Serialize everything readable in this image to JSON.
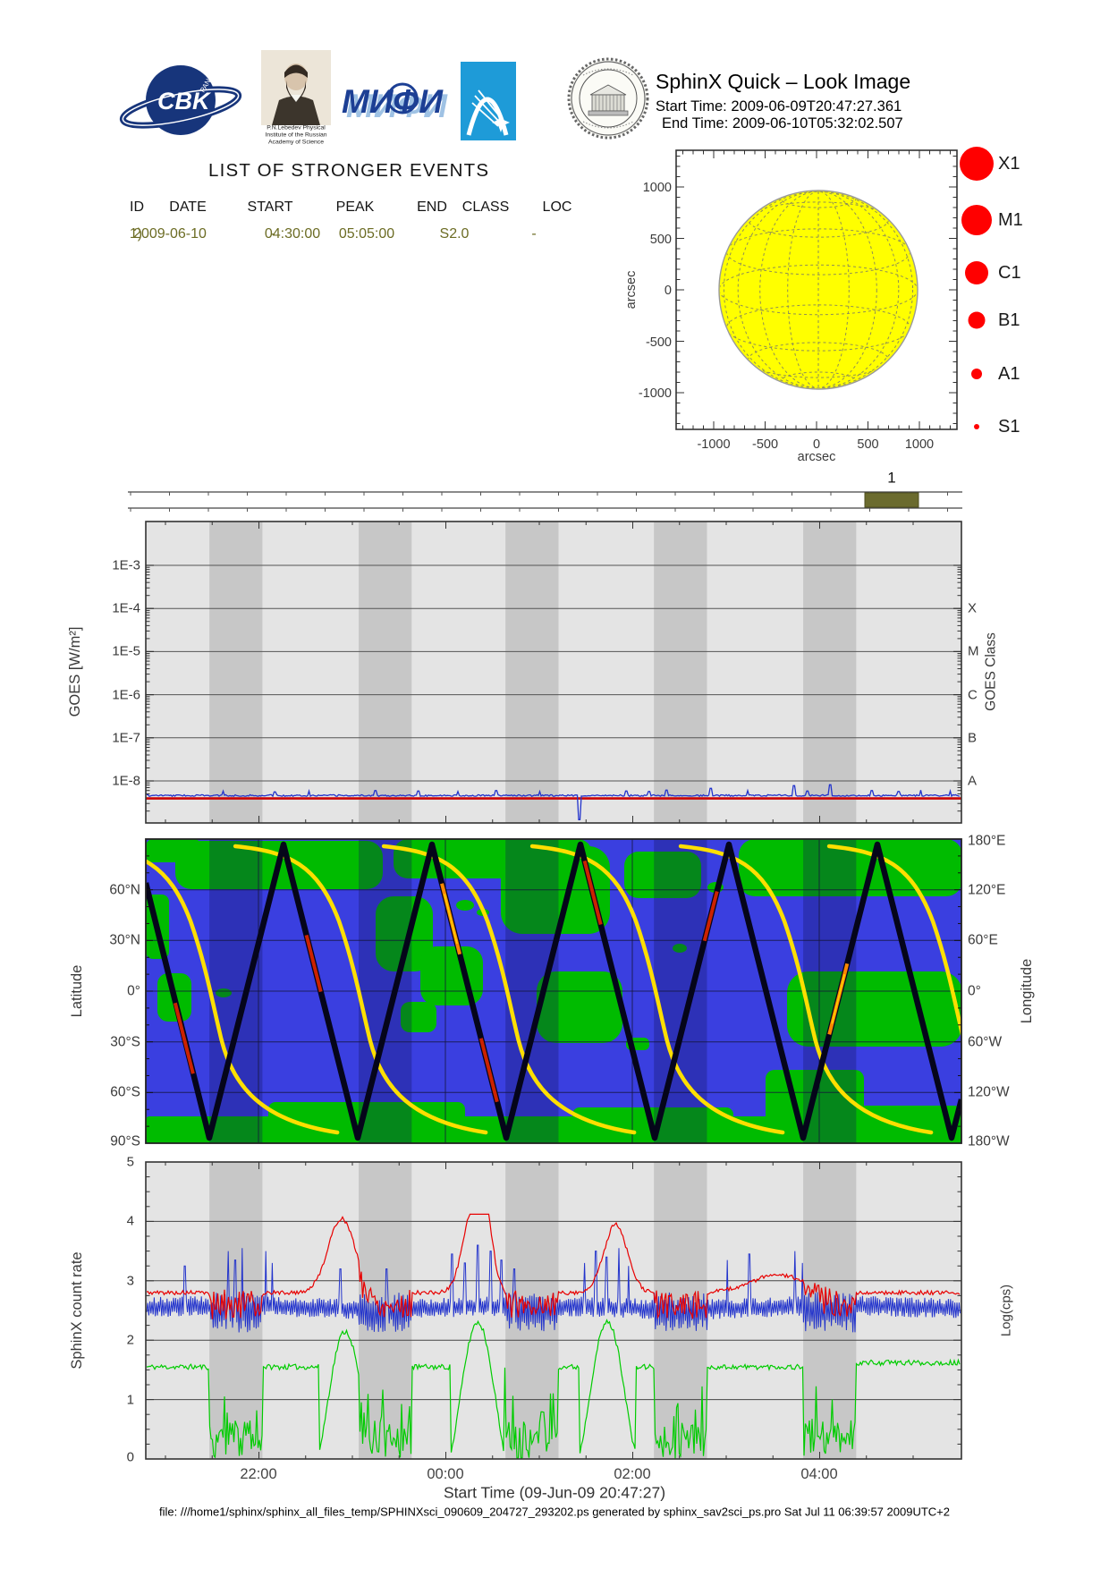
{
  "header": {
    "title": "SphinX Quick – Look Image",
    "start_time_label": "Start Time: 2009-06-09T20:47:27.361",
    "end_time_label": "End Time: 2009-06-10T05:32:02.507",
    "logos": {
      "cbk_text": "CBK",
      "cbk_sub": "PAN",
      "mephi_text": "МИФИ",
      "lebedev_caption_lines": [
        "P.N.Lebedev Physical",
        "Institute of the Russian",
        "Academy of Science"
      ]
    }
  },
  "events": {
    "title": "LIST OF STRONGER EVENTS",
    "columns": [
      "ID",
      "DATE",
      "START",
      "PEAK",
      "END",
      "CLASS",
      "LOC"
    ],
    "row": [
      "1)",
      "2009-06-10",
      "-",
      "04:30:00",
      "05:05:00",
      "S2.0",
      "-"
    ],
    "row_color": "#6c6c24"
  },
  "sun_plot": {
    "axis_label_x": "arcsec",
    "axis_label_y": "arcsec"
  },
  "flare_legend": {
    "color": "#ff0000",
    "items": [
      {
        "label": "X1",
        "r": 19
      },
      {
        "label": "M1",
        "r": 17
      },
      {
        "label": "C1",
        "r": 13
      },
      {
        "label": "B1",
        "r": 9.5
      },
      {
        "label": "A1",
        "r": 6
      },
      {
        "label": "S1",
        "r": 3
      }
    ]
  },
  "timeline": {
    "event_label": "1",
    "box_color": "#6b6b2e"
  },
  "goes_plot": {
    "ylabel": "GOES [W/m²]",
    "right_label": "GOES Class"
  },
  "map_plot": {
    "left_label": "Latitude",
    "right_label": "Longitude"
  },
  "rate_plot": {
    "ylabel": "SphinX count rate",
    "right_label": "Log(cps)",
    "xlabel": "Start Time (09-Jun-09 20:47:27)"
  },
  "footer": {
    "text": "file: ///home1/sphinx/sphinx_all_files_temp/SPHINXsci_090609_204727_293202.ps generated by sphinx_sav2sci_ps.pro Sat Jul 11 06:39:57 2009UTC+2"
  },
  "colors": {
    "sun_disk": "#ffff00",
    "flare": "#ff0000",
    "timeline_box": "#6b6b2e",
    "plot_bg": "#e4e4e4",
    "eclipse_band": "#c7c7c7",
    "goes_red": "#cc0000",
    "goes_blue": "#2233cc",
    "ocean": "#3a3fe0",
    "land": "#00bb00",
    "track": "#05051a",
    "longitude_curve": "#ffdf00",
    "rate_red": "#e80000",
    "rate_blue": "#2233cc",
    "rate_green": "#00cc00"
  },
  "chart_data": [
    {
      "type": "scatter",
      "name": "flare-location-solar-disk",
      "xlabel": "arcsec",
      "ylabel": "arcsec",
      "xlim": [
        -1370,
        1370
      ],
      "ylim": [
        -1350,
        1350
      ],
      "xticks": [
        "-1000",
        "-500",
        "0",
        "500",
        "1000"
      ],
      "yticks": [
        "1000",
        "500",
        "0",
        "-500",
        "-1000"
      ],
      "solar_disk_radius_arcsec": 950,
      "points": [],
      "legend_classes": [
        "X1",
        "M1",
        "C1",
        "B1",
        "A1",
        "S1"
      ]
    },
    {
      "type": "line",
      "name": "goes-flux",
      "ylabel": "GOES [W/m²]",
      "yscale": "log",
      "ylim": [
        "1e-9",
        "1e-2"
      ],
      "yticks": [
        "1E-3",
        "1E-4",
        "1E-5",
        "1E-6",
        "1E-7",
        "1E-8"
      ],
      "right_axis_classes": [
        "X",
        "M",
        "C",
        "B",
        "A"
      ],
      "series": [
        {
          "name": "goes-level",
          "color": "#cc0000",
          "behavior": "flat",
          "approx_value": "3.5e-9"
        },
        {
          "name": "sphinx-flux",
          "color": "#2233cc",
          "approx_value": "4e-9",
          "spikes": [
            {
              "t": 0.095,
              "dy": 5
            },
            {
              "t": 0.158,
              "dy": 4
            },
            {
              "t": 0.2,
              "dy": 5
            },
            {
              "t": 0.282,
              "dy": 5.5
            },
            {
              "t": 0.334,
              "dy": 5
            },
            {
              "t": 0.383,
              "dy": 4.5
            },
            {
              "t": 0.43,
              "dy": 5.5
            },
            {
              "t": 0.483,
              "dy": 4.5
            },
            {
              "t": 0.532,
              "dy": -27
            },
            {
              "t": 0.589,
              "dy": 5
            },
            {
              "t": 0.617,
              "dy": 4.5
            },
            {
              "t": 0.638,
              "dy": 6
            },
            {
              "t": 0.693,
              "dy": 8
            },
            {
              "t": 0.738,
              "dy": 5.5
            },
            {
              "t": 0.795,
              "dy": 11
            },
            {
              "t": 0.811,
              "dy": 5
            },
            {
              "t": 0.839,
              "dy": 12
            },
            {
              "t": 0.89,
              "dy": 5.5
            },
            {
              "t": 0.923,
              "dy": 4.5
            },
            {
              "t": 0.95,
              "dy": 6
            },
            {
              "t": 0.986,
              "dy": 5
            }
          ]
        }
      ]
    },
    {
      "type": "line",
      "name": "orbit-ground-track",
      "left_axis": {
        "label": "Latitude",
        "ticks": [
          "60°N",
          "30°N",
          "0°",
          "30°S",
          "60°S",
          "90°S"
        ]
      },
      "right_axis": {
        "label": "Longitude",
        "ticks": [
          "180°E",
          "120°E",
          "60°E",
          "0°",
          "60°W",
          "120°W",
          "180°W"
        ]
      },
      "track_period_min": 95.3,
      "lat_min_crossings_frac": [
        0.078,
        0.26,
        0.442,
        0.624,
        0.806,
        0.988
      ],
      "hot_segments_frac": [
        [
          0.036,
          0.058
        ],
        [
          0.197,
          0.216
        ],
        [
          0.363,
          0.387
        ],
        [
          0.411,
          0.431
        ],
        [
          0.538,
          0.558
        ],
        [
          0.685,
          0.702
        ],
        [
          0.838,
          0.862
        ]
      ],
      "longitude_descends_each_orbit": true
    },
    {
      "type": "line",
      "name": "sphinx-count-rate",
      "ylabel": "SphinX count rate",
      "right_label": "Log(cps)",
      "ylim": [
        0,
        5
      ],
      "yticks": [
        "5",
        "4",
        "3",
        "2",
        "1",
        "0"
      ],
      "xticks": [
        "22:00",
        "00:00",
        "02:00",
        "04:00"
      ],
      "xlabel": "Start Time (09-Jun-09 20:47:27)",
      "eclipse_bands_frac": {
        "starts": [
          0.078,
          0.261,
          0.441,
          0.623,
          0.806
        ],
        "width": 0.065
      },
      "series": [
        {
          "name": "red-detector",
          "color": "#e80000",
          "baseline_log_cps": 2.8,
          "peaks": [
            {
              "t_frac": 0.24,
              "value": 4.05,
              "sig": 15
            },
            {
              "t_frac": 0.4,
              "value": 4.1,
              "sig": 11
            },
            {
              "t_frac": 0.417,
              "value": 3.9,
              "sig": 8
            },
            {
              "t_frac": 0.576,
              "value": 3.95,
              "sig": 13
            },
            {
              "t_frac": 0.775,
              "value": 3.1,
              "sig": 30
            }
          ]
        },
        {
          "name": "blue-detector",
          "color": "#2233cc",
          "baseline_log_cps": 2.55,
          "spikes": [
            {
              "t": 0.048,
              "v": 3.25
            },
            {
              "t": 0.101,
              "v": 3.5
            },
            {
              "t": 0.11,
              "v": 3.35
            },
            {
              "t": 0.118,
              "v": 3.55
            },
            {
              "t": 0.147,
              "v": 3.5
            },
            {
              "t": 0.155,
              "v": 3.3
            },
            {
              "t": 0.239,
              "v": 3.2
            },
            {
              "t": 0.295,
              "v": 3.2
            },
            {
              "t": 0.375,
              "v": 3.45
            },
            {
              "t": 0.391,
              "v": 3.3
            },
            {
              "t": 0.407,
              "v": 3.6
            },
            {
              "t": 0.423,
              "v": 3.5
            },
            {
              "t": 0.436,
              "v": 3.35
            },
            {
              "t": 0.452,
              "v": 3.2
            },
            {
              "t": 0.538,
              "v": 3.3
            },
            {
              "t": 0.552,
              "v": 3.5
            },
            {
              "t": 0.565,
              "v": 3.4
            },
            {
              "t": 0.58,
              "v": 3.55
            },
            {
              "t": 0.592,
              "v": 3.25
            },
            {
              "t": 0.713,
              "v": 3.35
            },
            {
              "t": 0.74,
              "v": 3.45
            },
            {
              "t": 0.796,
              "v": 3.5
            },
            {
              "t": 0.805,
              "v": 3.3
            }
          ]
        },
        {
          "name": "green-detector",
          "color": "#00cc00",
          "baseline_log_cps": 1.55,
          "bells": [
            {
              "x0_frac": 0.212,
              "x1_frac": 0.277,
              "peak": 2.15
            },
            {
              "x0_frac": 0.374,
              "x1_frac": 0.44,
              "peak": 2.3
            },
            {
              "x0_frac": 0.532,
              "x1_frac": 0.6,
              "peak": 2.3
            }
          ],
          "eclipse_response": "drops to ~0 with spikes inside every eclipse band"
        }
      ]
    }
  ]
}
